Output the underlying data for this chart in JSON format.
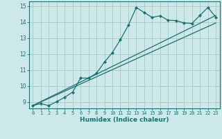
{
  "title": "",
  "xlabel": "Humidex (Indice chaleur)",
  "bg_color": "#cce8e8",
  "grid_color": "#aacccc",
  "line_color": "#1a7070",
  "xlim": [
    -0.5,
    23.5
  ],
  "ylim": [
    8.6,
    15.3
  ],
  "xticks": [
    0,
    1,
    2,
    3,
    4,
    5,
    6,
    7,
    8,
    9,
    10,
    11,
    12,
    13,
    14,
    15,
    16,
    17,
    18,
    19,
    20,
    21,
    22,
    23
  ],
  "yticks": [
    9,
    10,
    11,
    12,
    13,
    14,
    15
  ],
  "series1_x": [
    0,
    1,
    2,
    3,
    4,
    5,
    6,
    7,
    8,
    9,
    10,
    11,
    12,
    13,
    14,
    15,
    16,
    17,
    18,
    19,
    20,
    21,
    22,
    23
  ],
  "series1_y": [
    8.78,
    8.9,
    8.78,
    9.02,
    9.3,
    9.62,
    10.5,
    10.5,
    10.8,
    11.5,
    12.1,
    12.9,
    13.8,
    14.92,
    14.6,
    14.3,
    14.4,
    14.12,
    14.1,
    13.95,
    13.92,
    14.42,
    14.92,
    14.32
  ],
  "series2_x": [
    0,
    23
  ],
  "series2_y": [
    8.78,
    14.42
  ],
  "series3_x": [
    0,
    23
  ],
  "series3_y": [
    8.78,
    13.95
  ]
}
